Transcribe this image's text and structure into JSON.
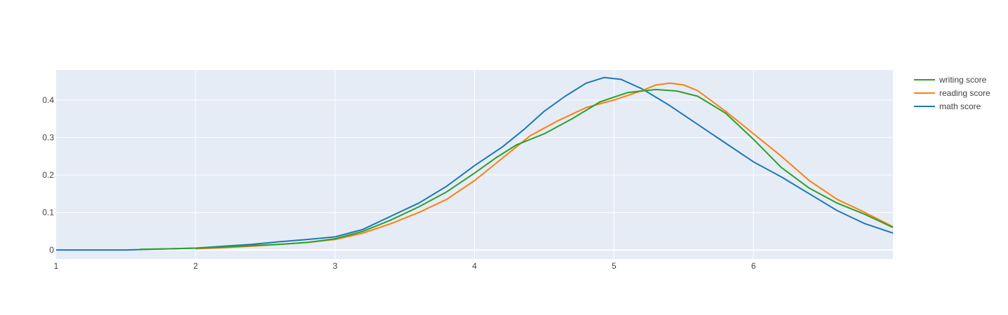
{
  "chart_data": {
    "type": "line",
    "title": "",
    "xlabel": "",
    "ylabel": "",
    "xlim": [
      1,
      7
    ],
    "ylim": [
      -0.024,
      0.48
    ],
    "grid": true,
    "legend_position": "top-right",
    "x_ticks": [
      1,
      2,
      3,
      4,
      5,
      6
    ],
    "x_tick_labels": [
      "1",
      "2",
      "3",
      "4",
      "5",
      "6"
    ],
    "y_ticks": [
      0,
      0.1,
      0.2,
      0.3,
      0.4
    ],
    "y_tick_labels": [
      "0",
      "0.1",
      "0.2",
      "0.3",
      "0.4"
    ],
    "series": [
      {
        "name": "writing score",
        "color": "#2ca02c",
        "x": [
          1.6,
          1.8,
          2.0,
          2.2,
          2.4,
          2.6,
          2.8,
          3.0,
          3.2,
          3.4,
          3.6,
          3.8,
          4.0,
          4.15,
          4.3,
          4.5,
          4.7,
          4.9,
          5.1,
          5.3,
          5.45,
          5.6,
          5.8,
          6.0,
          6.2,
          6.4,
          6.6,
          6.8,
          7.0
        ],
        "y": [
          0.002,
          0.003,
          0.005,
          0.008,
          0.012,
          0.015,
          0.02,
          0.03,
          0.05,
          0.08,
          0.115,
          0.155,
          0.205,
          0.245,
          0.28,
          0.31,
          0.35,
          0.395,
          0.42,
          0.428,
          0.424,
          0.41,
          0.365,
          0.295,
          0.22,
          0.165,
          0.125,
          0.095,
          0.06
        ]
      },
      {
        "name": "reading score",
        "color": "#ff7f0e",
        "x": [
          2.0,
          2.2,
          2.4,
          2.6,
          2.8,
          3.0,
          3.2,
          3.4,
          3.6,
          3.8,
          4.0,
          4.2,
          4.4,
          4.6,
          4.8,
          5.0,
          5.2,
          5.3,
          5.4,
          5.5,
          5.6,
          5.8,
          6.0,
          6.2,
          6.4,
          6.6,
          6.8,
          7.0
        ],
        "y": [
          0.003,
          0.006,
          0.01,
          0.015,
          0.02,
          0.028,
          0.045,
          0.07,
          0.1,
          0.135,
          0.185,
          0.245,
          0.305,
          0.345,
          0.38,
          0.4,
          0.425,
          0.44,
          0.445,
          0.44,
          0.425,
          0.37,
          0.31,
          0.25,
          0.185,
          0.135,
          0.1,
          0.062
        ]
      },
      {
        "name": "math score",
        "color": "#1f77b4",
        "x": [
          1.0,
          1.5,
          2.0,
          2.2,
          2.4,
          2.6,
          2.8,
          3.0,
          3.2,
          3.4,
          3.6,
          3.8,
          4.0,
          4.2,
          4.35,
          4.5,
          4.65,
          4.8,
          4.93,
          5.05,
          5.2,
          5.4,
          5.6,
          5.8,
          6.0,
          6.2,
          6.4,
          6.6,
          6.8,
          7.0
        ],
        "y": [
          0.0,
          0.0,
          0.005,
          0.01,
          0.015,
          0.022,
          0.028,
          0.035,
          0.055,
          0.09,
          0.125,
          0.17,
          0.225,
          0.275,
          0.32,
          0.37,
          0.41,
          0.445,
          0.46,
          0.455,
          0.43,
          0.385,
          0.335,
          0.285,
          0.235,
          0.195,
          0.15,
          0.105,
          0.07,
          0.045
        ]
      }
    ]
  }
}
